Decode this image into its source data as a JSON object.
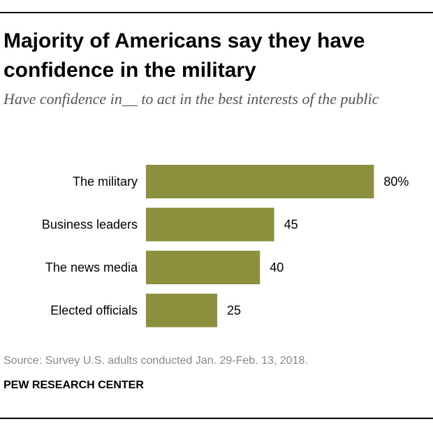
{
  "header": {
    "title": "Majority of Americans say they have confidence in the military",
    "subtitle": "Have confidence in__ to act in the best interests of the public"
  },
  "chart_data": {
    "type": "bar",
    "orientation": "horizontal",
    "categories": [
      "The military",
      "Business leaders",
      "The news media",
      "Elected officials"
    ],
    "values": [
      80,
      45,
      40,
      25
    ],
    "value_labels": [
      "80%",
      "45",
      "40",
      "25"
    ],
    "xlim": [
      0,
      100
    ],
    "grid": false,
    "colors": {
      "bar": "#8c8f3c"
    }
  },
  "footer": {
    "source": "Source: Survey U.S. adults conducted Jan. 29-Feb. 13, 2018.",
    "brand": "PEW RESEARCH CENTER"
  }
}
